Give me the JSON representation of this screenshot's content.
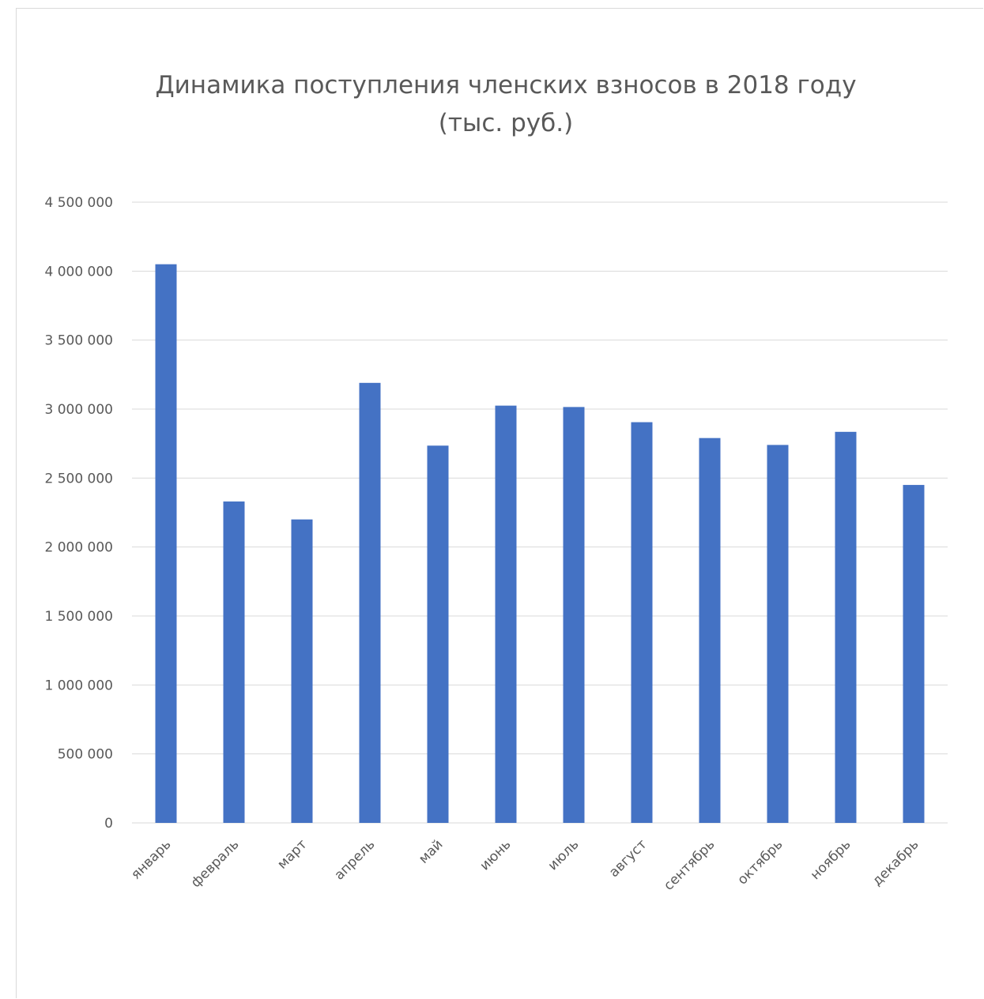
{
  "chart_data": {
    "type": "bar",
    "title": "Динамика поступления членских взносов в 2018 году",
    "subtitle": "(тыс. руб.)",
    "categories": [
      "январь",
      "февраль",
      "март",
      "апрель",
      "май",
      "июнь",
      "июль",
      "август",
      "сентябрь",
      "октябрь",
      "ноябрь",
      "декабрь"
    ],
    "values": [
      4050000,
      2330000,
      2200000,
      3190000,
      2735000,
      3025000,
      3015000,
      2905000,
      2790000,
      2740000,
      2835000,
      2450000
    ],
    "ylim": [
      0,
      4500000
    ],
    "ytick_values": [
      0,
      500000,
      1000000,
      1500000,
      2000000,
      2500000,
      3000000,
      3500000,
      4000000,
      4500000
    ],
    "ytick_labels": [
      "0",
      "500 000",
      "1 000 000",
      "1 500 000",
      "2 000 000",
      "2 500 000",
      "3 000 000",
      "3 500 000",
      "4 000 000",
      "4 500 000"
    ],
    "grid": true,
    "legend": "none",
    "bar_color": "#4472C4",
    "grid_color": "#d9d9d9",
    "text_color": "#595959"
  }
}
